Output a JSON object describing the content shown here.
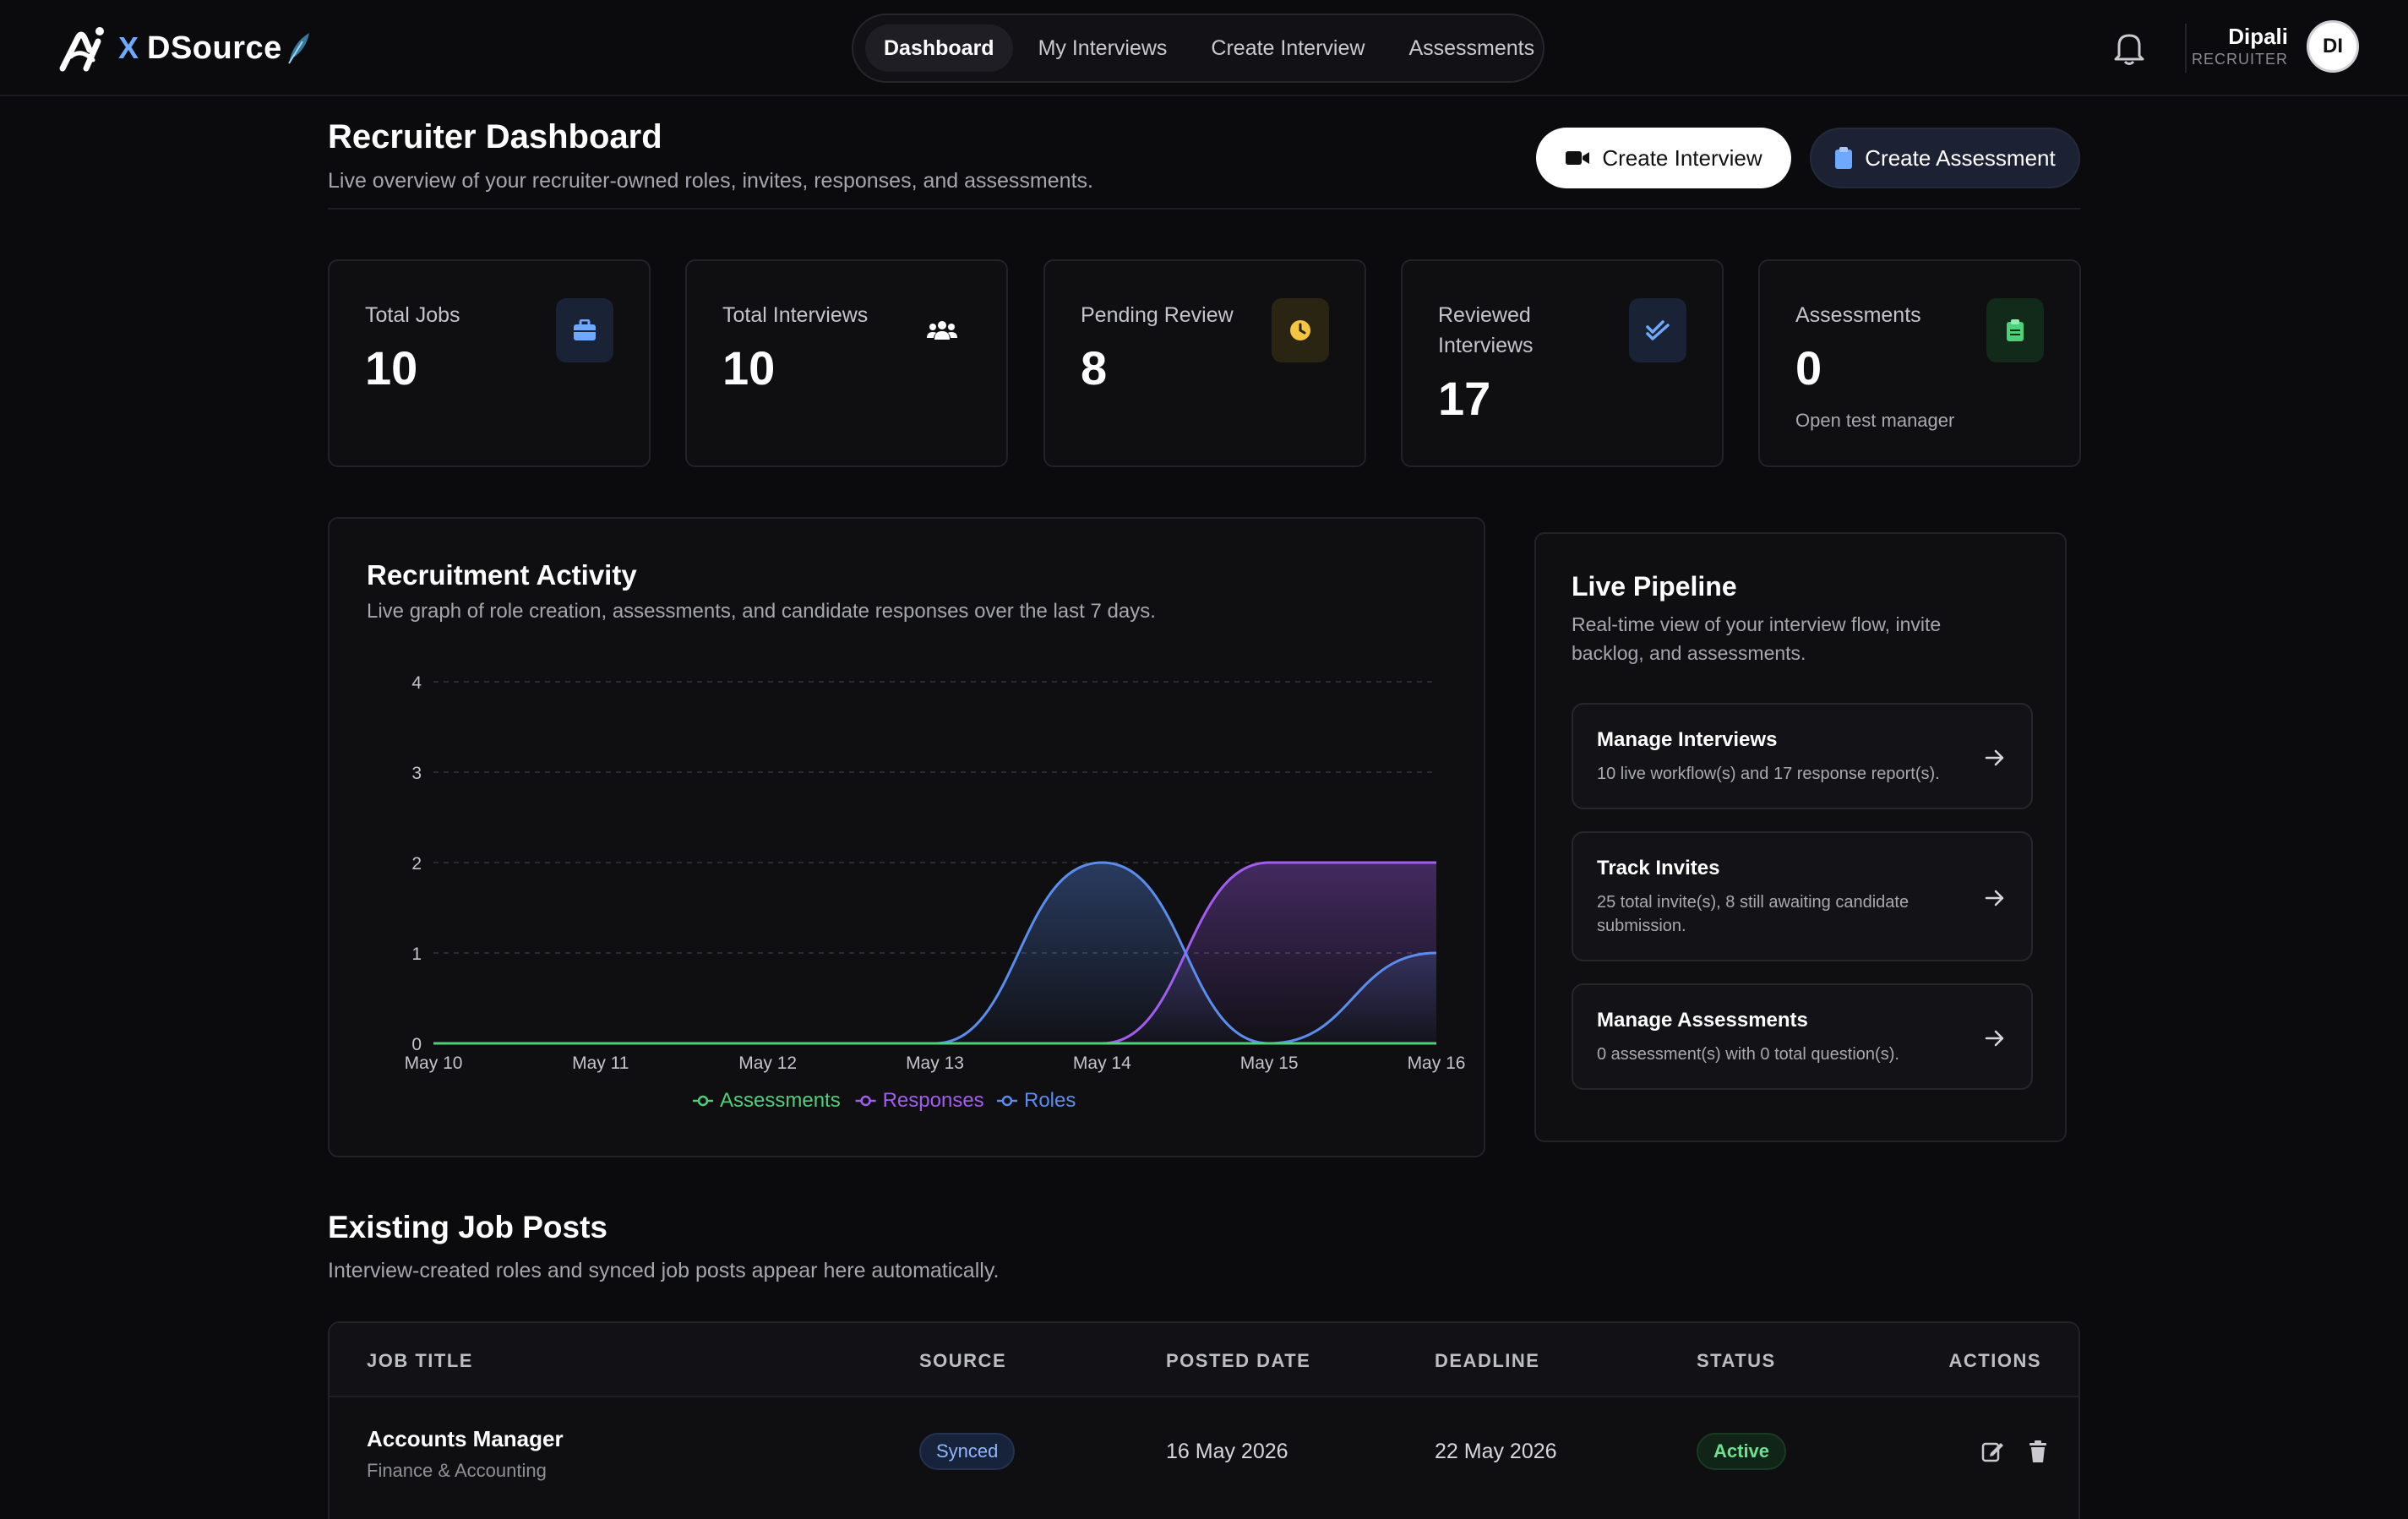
{
  "brand": {
    "x_label": "X",
    "name": "DSource"
  },
  "nav": {
    "items": [
      {
        "label": "Dashboard",
        "active": true
      },
      {
        "label": "My Interviews",
        "active": false
      },
      {
        "label": "Create Interview",
        "active": false
      },
      {
        "label": "Assessments",
        "active": false
      }
    ]
  },
  "user": {
    "name": "Dipali",
    "role": "RECRUITER",
    "initials": "DI"
  },
  "page": {
    "title": "Recruiter Dashboard",
    "subtitle": "Live overview of your recruiter-owned roles, invites, responses, and assessments.",
    "create_interview_label": "Create Interview",
    "create_assessment_label": "Create Assessment"
  },
  "stats": [
    {
      "label": "Total Jobs",
      "value": "10",
      "icon": "briefcase-icon",
      "color": "#6ea8ff"
    },
    {
      "label": "Total Interviews",
      "value": "10",
      "icon": "users-icon",
      "color": "#ffffff"
    },
    {
      "label": "Pending Review",
      "value": "8",
      "icon": "clock-icon",
      "color": "#f5c542"
    },
    {
      "label": "Reviewed Interviews",
      "value": "17",
      "icon": "check-double-icon",
      "color": "#6ea8ff"
    },
    {
      "label": "Assessments",
      "value": "0",
      "note": "Open test manager",
      "icon": "clipboard-icon",
      "color": "#4cd07a"
    }
  ],
  "activity": {
    "title": "Recruitment Activity",
    "subtitle": "Live graph of role creation, assessments, and candidate responses over the last 7 days."
  },
  "chart_data": {
    "type": "area",
    "title": "",
    "x": [
      "May 10",
      "May 11",
      "May 12",
      "May 13",
      "May 14",
      "May 15",
      "May 16"
    ],
    "ylim": [
      0,
      4
    ],
    "yticks": [
      0,
      1,
      2,
      3,
      4
    ],
    "grid": true,
    "legend": "bottom",
    "series": [
      {
        "name": "Assessments",
        "values": [
          0,
          0,
          0,
          0,
          0,
          0,
          0
        ],
        "color": "#4cd07a"
      },
      {
        "name": "Responses",
        "values": [
          0,
          0,
          0,
          0,
          0,
          2,
          2
        ],
        "color": "#a35cf0"
      },
      {
        "name": "Roles",
        "values": [
          0,
          0,
          0,
          0,
          2,
          0,
          1
        ],
        "color": "#5b8def"
      }
    ]
  },
  "pipeline": {
    "title": "Live Pipeline",
    "subtitle": "Real-time view of your interview flow, invite backlog, and assessments.",
    "items": [
      {
        "title": "Manage Interviews",
        "desc": "10 live workflow(s) and 17 response report(s)."
      },
      {
        "title": "Track Invites",
        "desc": "25 total invite(s), 8 still awaiting candidate submission."
      },
      {
        "title": "Manage Assessments",
        "desc": "0 assessment(s) with 0 total question(s)."
      }
    ]
  },
  "jobs": {
    "title": "Existing Job Posts",
    "subtitle": "Interview-created roles and synced job posts appear here automatically.",
    "columns": [
      "JOB TITLE",
      "SOURCE",
      "POSTED DATE",
      "DEADLINE",
      "STATUS",
      "ACTIONS"
    ],
    "rows": [
      {
        "title": "Accounts Manager",
        "category": "Finance & Accounting",
        "source": "Synced",
        "posted": "16 May 2026",
        "deadline": "22 May 2026",
        "status": "Active"
      }
    ]
  }
}
